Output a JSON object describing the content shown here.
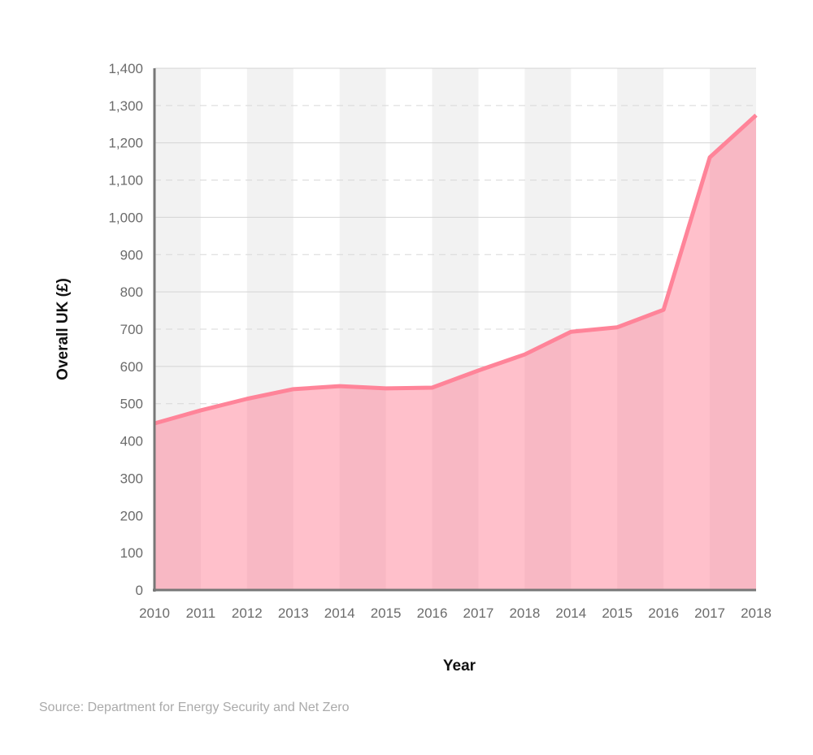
{
  "chart_data": {
    "type": "area",
    "title": "",
    "xlabel": "Year",
    "ylabel": "Overall UK (£)",
    "categories": [
      "2010",
      "2011",
      "2012",
      "2013",
      "2014",
      "2015",
      "2016",
      "2017",
      "2018",
      "2014",
      "2015",
      "2016",
      "2017",
      "2018"
    ],
    "values": [
      447,
      482,
      513,
      539,
      547,
      541,
      543,
      589,
      632,
      693,
      705,
      752,
      1161,
      1274
    ],
    "ylim": [
      0,
      1400
    ],
    "yticks": [
      0,
      100,
      200,
      300,
      400,
      500,
      600,
      700,
      800,
      900,
      1000,
      1100,
      1200,
      1300,
      1400
    ],
    "ytick_labels": [
      "0",
      "100",
      "200",
      "300",
      "400",
      "500",
      "600",
      "700",
      "800",
      "900",
      "1,000",
      "1,100",
      "1,200",
      "1,300",
      "1,400"
    ],
    "grid": true,
    "colors": {
      "line": "#ff8499",
      "fill": "#ffc0cb",
      "band": "#f2f2f2"
    }
  },
  "source": "Source: Department for Energy Security and Net Zero"
}
